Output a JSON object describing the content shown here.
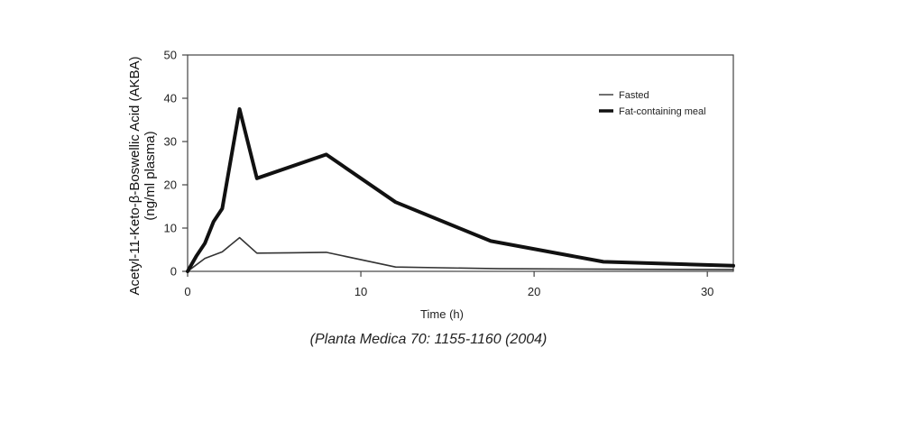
{
  "chart_data": {
    "type": "line",
    "title": "",
    "xlabel": "Time (h)",
    "ylabel_line1": "Acetyl-11-Keto-β-Boswellic Acid (AKBA)",
    "ylabel_line2": "(ng/ml plasma)",
    "xlim": [
      0,
      31.5
    ],
    "ylim": [
      0,
      50
    ],
    "xticks": [
      0,
      10,
      20,
      30
    ],
    "yticks": [
      0,
      10,
      20,
      30,
      40,
      50
    ],
    "grid": false,
    "legend_position": "top-right",
    "series": [
      {
        "name": "Fasted",
        "style": "thin",
        "color": "#333333",
        "x": [
          0,
          0.5,
          1,
          2,
          3,
          4,
          6,
          8,
          12,
          18,
          24,
          31.5
        ],
        "y": [
          0,
          1.5,
          3,
          4.5,
          7.8,
          4.2,
          4.3,
          4.4,
          1,
          0.6,
          0.5,
          0.4
        ]
      },
      {
        "name": "Fat-containing meal",
        "style": "thick",
        "color": "#111111",
        "x": [
          0,
          0.5,
          1,
          1.5,
          2,
          3,
          4,
          8,
          12,
          17.5,
          24,
          31.5
        ],
        "y": [
          0,
          3.5,
          6.5,
          11.5,
          14.5,
          37.5,
          21.5,
          27,
          16,
          7,
          2.2,
          1.3
        ]
      }
    ]
  },
  "source_note": "(Planta Medica 70: 1155-1160 (2004)"
}
